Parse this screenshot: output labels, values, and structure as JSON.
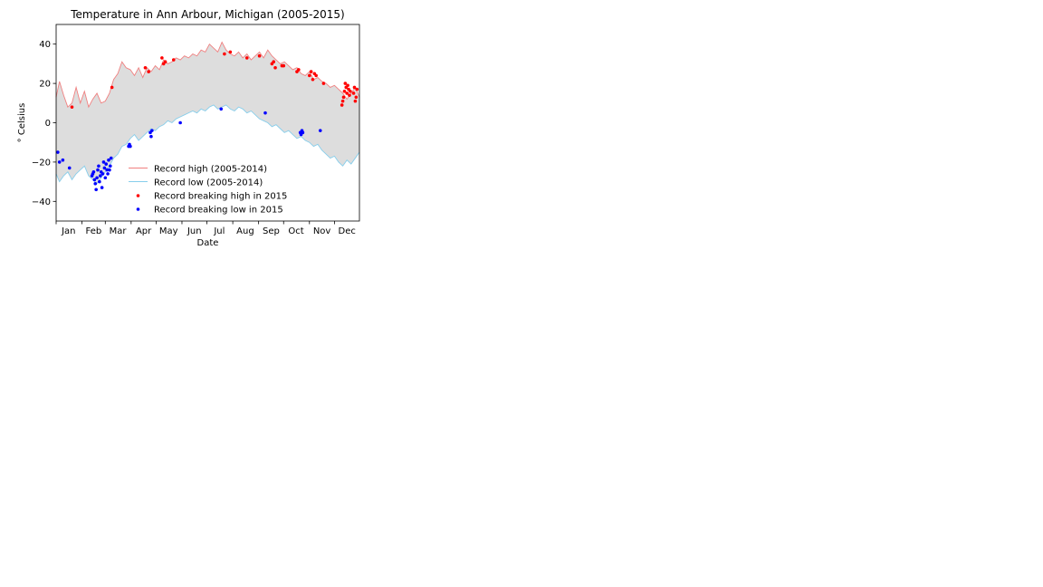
{
  "chart_data": {
    "type": "line",
    "title": "Temperature in Ann Arbour, Michigan (2005-2015)",
    "xlabel": "Date",
    "ylabel": "° Celsius",
    "ylim": [
      -50,
      50
    ],
    "yticks": [
      -40,
      -20,
      0,
      20,
      40
    ],
    "xlim": [
      1,
      365
    ],
    "month_ticks": [
      {
        "label": "Jan",
        "day": 16
      },
      {
        "label": "Feb",
        "day": 46
      },
      {
        "label": "Mar",
        "day": 75
      },
      {
        "label": "Apr",
        "day": 106
      },
      {
        "label": "May",
        "day": 136
      },
      {
        "label": "Jun",
        "day": 167
      },
      {
        "label": "Jul",
        "day": 197
      },
      {
        "label": "Aug",
        "day": 228
      },
      {
        "label": "Sep",
        "day": 259
      },
      {
        "label": "Oct",
        "day": 289
      },
      {
        "label": "Nov",
        "day": 320
      },
      {
        "label": "Dec",
        "day": 350
      }
    ],
    "month_starts": [
      1,
      32,
      60,
      91,
      121,
      152,
      182,
      213,
      244,
      274,
      305,
      335
    ],
    "fill_between": {
      "color": "#dddddd"
    },
    "series": [
      {
        "name": "Record high (2005-2014)",
        "kind": "line",
        "color": "#f08080",
        "x": [
          1,
          5,
          10,
          15,
          20,
          25,
          30,
          35,
          40,
          45,
          50,
          55,
          60,
          65,
          70,
          75,
          80,
          85,
          90,
          95,
          100,
          105,
          110,
          115,
          120,
          125,
          130,
          135,
          140,
          145,
          150,
          155,
          160,
          165,
          170,
          175,
          180,
          185,
          190,
          195,
          200,
          205,
          210,
          215,
          220,
          225,
          230,
          235,
          240,
          245,
          250,
          255,
          260,
          265,
          270,
          275,
          280,
          285,
          290,
          295,
          300,
          305,
          310,
          315,
          320,
          325,
          330,
          335,
          340,
          345,
          350,
          355,
          360,
          365
        ],
        "y": [
          13,
          21,
          14,
          8,
          10,
          18,
          10,
          16,
          8,
          12,
          15,
          10,
          11,
          15,
          22,
          25,
          31,
          28,
          27,
          24,
          28,
          23,
          28,
          26,
          29,
          27,
          32,
          30,
          31,
          33,
          32,
          34,
          33,
          35,
          34,
          37,
          36,
          40,
          38,
          36,
          41,
          37,
          35,
          34,
          36,
          33,
          35,
          32,
          34,
          36,
          33,
          37,
          34,
          32,
          30,
          31,
          29,
          27,
          28,
          25,
          24,
          26,
          22,
          23,
          21,
          20,
          18,
          19,
          17,
          15,
          12,
          15,
          18,
          13
        ]
      },
      {
        "name": "Record low (2005-2014)",
        "kind": "line",
        "color": "#87ceeb",
        "x": [
          1,
          5,
          10,
          15,
          20,
          25,
          30,
          35,
          40,
          45,
          50,
          55,
          60,
          65,
          70,
          75,
          80,
          85,
          90,
          95,
          100,
          105,
          110,
          115,
          120,
          125,
          130,
          135,
          140,
          145,
          150,
          155,
          160,
          165,
          170,
          175,
          180,
          185,
          190,
          195,
          200,
          205,
          210,
          215,
          220,
          225,
          230,
          235,
          240,
          245,
          250,
          255,
          260,
          265,
          270,
          275,
          280,
          285,
          290,
          295,
          300,
          305,
          310,
          315,
          320,
          325,
          330,
          335,
          340,
          345,
          350,
          355,
          360,
          365
        ],
        "y": [
          -26,
          -30,
          -27,
          -25,
          -29,
          -26,
          -24,
          -22,
          -27,
          -29,
          -31,
          -28,
          -25,
          -22,
          -18,
          -16,
          -12,
          -11,
          -8,
          -6,
          -9,
          -7,
          -5,
          -3,
          -4,
          -2,
          -1,
          1,
          0,
          2,
          3,
          4,
          5,
          6,
          5,
          7,
          6,
          8,
          9,
          7,
          8,
          9,
          7,
          6,
          8,
          7,
          5,
          6,
          4,
          2,
          1,
          0,
          -2,
          -1,
          -3,
          -5,
          -4,
          -6,
          -8,
          -7,
          -9,
          -10,
          -12,
          -11,
          -14,
          -16,
          -18,
          -17,
          -20,
          -22,
          -19,
          -21,
          -18,
          -15
        ]
      },
      {
        "name": "Record breaking high in 2015",
        "kind": "scatter",
        "color": "#ff0000",
        "x": [
          20,
          68,
          108,
          112,
          128,
          130,
          132,
          142,
          203,
          210,
          230,
          245,
          260,
          262,
          264,
          272,
          274,
          290,
          292,
          305,
          307,
          309,
          311,
          313,
          322,
          344,
          345,
          346,
          347,
          348,
          349,
          350,
          351,
          352,
          353,
          354,
          358,
          359,
          360,
          361,
          362
        ],
        "y": [
          8,
          18,
          28,
          26,
          33,
          30,
          31,
          32,
          35,
          36,
          33,
          34,
          30,
          31,
          28,
          29,
          29,
          26,
          27,
          24,
          26,
          22,
          25,
          24,
          20,
          9,
          11,
          13,
          16,
          20,
          18,
          15,
          19,
          17,
          14,
          16,
          15,
          18,
          11,
          13,
          17
        ]
      },
      {
        "name": "Record breaking low in 2015",
        "kind": "scatter",
        "color": "#0000ff",
        "x": [
          3,
          5,
          9,
          17,
          44,
          45,
          46,
          47,
          48,
          49,
          50,
          51,
          52,
          53,
          54,
          55,
          56,
          57,
          58,
          59,
          60,
          61,
          62,
          63,
          64,
          65,
          66,
          67,
          88,
          89,
          90,
          114,
          115,
          116,
          150,
          199,
          252,
          294,
          295,
          296,
          297,
          318
        ],
        "y": [
          -15,
          -20,
          -19,
          -23,
          -27,
          -26,
          -25,
          -29,
          -31,
          -34,
          -28,
          -24,
          -22,
          -30,
          -27,
          -25,
          -33,
          -26,
          -20,
          -23,
          -28,
          -21,
          -24,
          -26,
          -19,
          -24,
          -22,
          -18,
          -12,
          -11,
          -12,
          -5,
          -7,
          -4,
          0,
          7,
          5,
          -5,
          -6,
          -4,
          -5,
          -4
        ]
      }
    ],
    "legend": {
      "placement": "lower-center",
      "entries": [
        "Record high (2005-2014)",
        "Record low (2005-2014)",
        "Record breaking high in 2015",
        "Record breaking low in 2015"
      ]
    },
    "grid": false
  }
}
